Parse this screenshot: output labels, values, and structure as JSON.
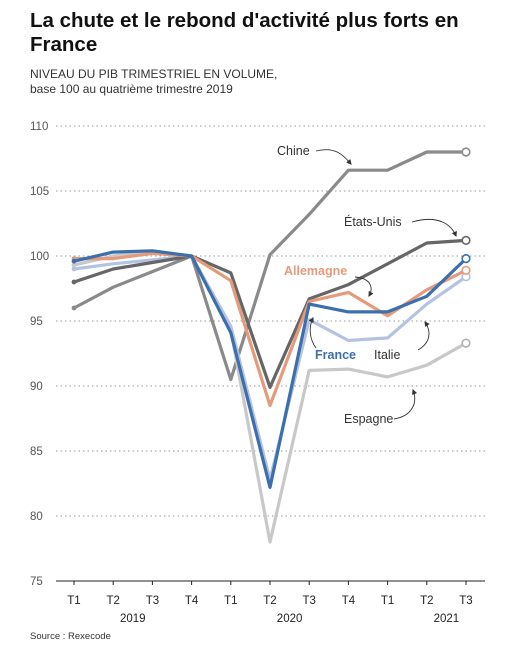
{
  "header": {
    "title": "La chute et le rebond d'activité plus forts en France",
    "subtitle_line1": "NIVEAU DU PIB TRIMESTRIEL EN VOLUME,",
    "subtitle_line2": "base 100 au quatrième trimestre 2019"
  },
  "footer": {
    "source": "Source : Rexecode"
  },
  "chart_data": {
    "type": "line",
    "title": "La chute et le rebond d'activité plus forts en France",
    "subtitle": "NIVEAU DU PIB TRIMESTRIEL EN VOLUME, base 100 au quatrième trimestre 2019",
    "categories": [
      "T1",
      "T2",
      "T3",
      "T4",
      "T1",
      "T2",
      "T3",
      "T4",
      "T1",
      "T2",
      "T3"
    ],
    "year_labels": [
      {
        "label": "2019",
        "index": 1.5
      },
      {
        "label": "2020",
        "index": 5.5
      },
      {
        "label": "2021",
        "index": 9.5
      }
    ],
    "ylim": [
      75,
      110
    ],
    "yticks": [
      75,
      80,
      85,
      90,
      95,
      100,
      105,
      110
    ],
    "grid": "horizontal dotted",
    "legend": "direct labels",
    "series": [
      {
        "name": "Chine",
        "color": "#8a8a8a",
        "values": [
          96.0,
          97.6,
          98.8,
          100.0,
          90.5,
          100.1,
          103.2,
          106.6,
          106.6,
          108.0,
          108.0
        ]
      },
      {
        "name": "Espagne",
        "color": "#c8c8c8",
        "values": [
          99.3,
          100.0,
          100.3,
          100.0,
          94.3,
          78.0,
          91.2,
          91.3,
          90.7,
          91.6,
          93.3
        ]
      },
      {
        "name": "Italie",
        "color": "#b5c3e2",
        "values": [
          99.0,
          99.4,
          99.7,
          100.0,
          94.6,
          82.8,
          95.1,
          93.5,
          93.7,
          96.3,
          98.4
        ]
      },
      {
        "name": "États-Unis",
        "color": "#666666",
        "values": [
          98.0,
          99.0,
          99.5,
          100.0,
          98.7,
          89.9,
          96.7,
          97.8,
          99.4,
          101.0,
          101.2
        ]
      },
      {
        "name": "Allemagne",
        "color": "#e59a7b",
        "values": [
          99.8,
          99.8,
          100.2,
          100.0,
          98.1,
          88.5,
          96.5,
          97.2,
          95.4,
          97.4,
          98.9
        ]
      },
      {
        "name": "France",
        "color": "#3b6fad",
        "values": [
          99.6,
          100.3,
          100.4,
          100.0,
          94.1,
          82.2,
          96.3,
          95.7,
          95.7,
          96.9,
          99.8
        ]
      }
    ]
  }
}
